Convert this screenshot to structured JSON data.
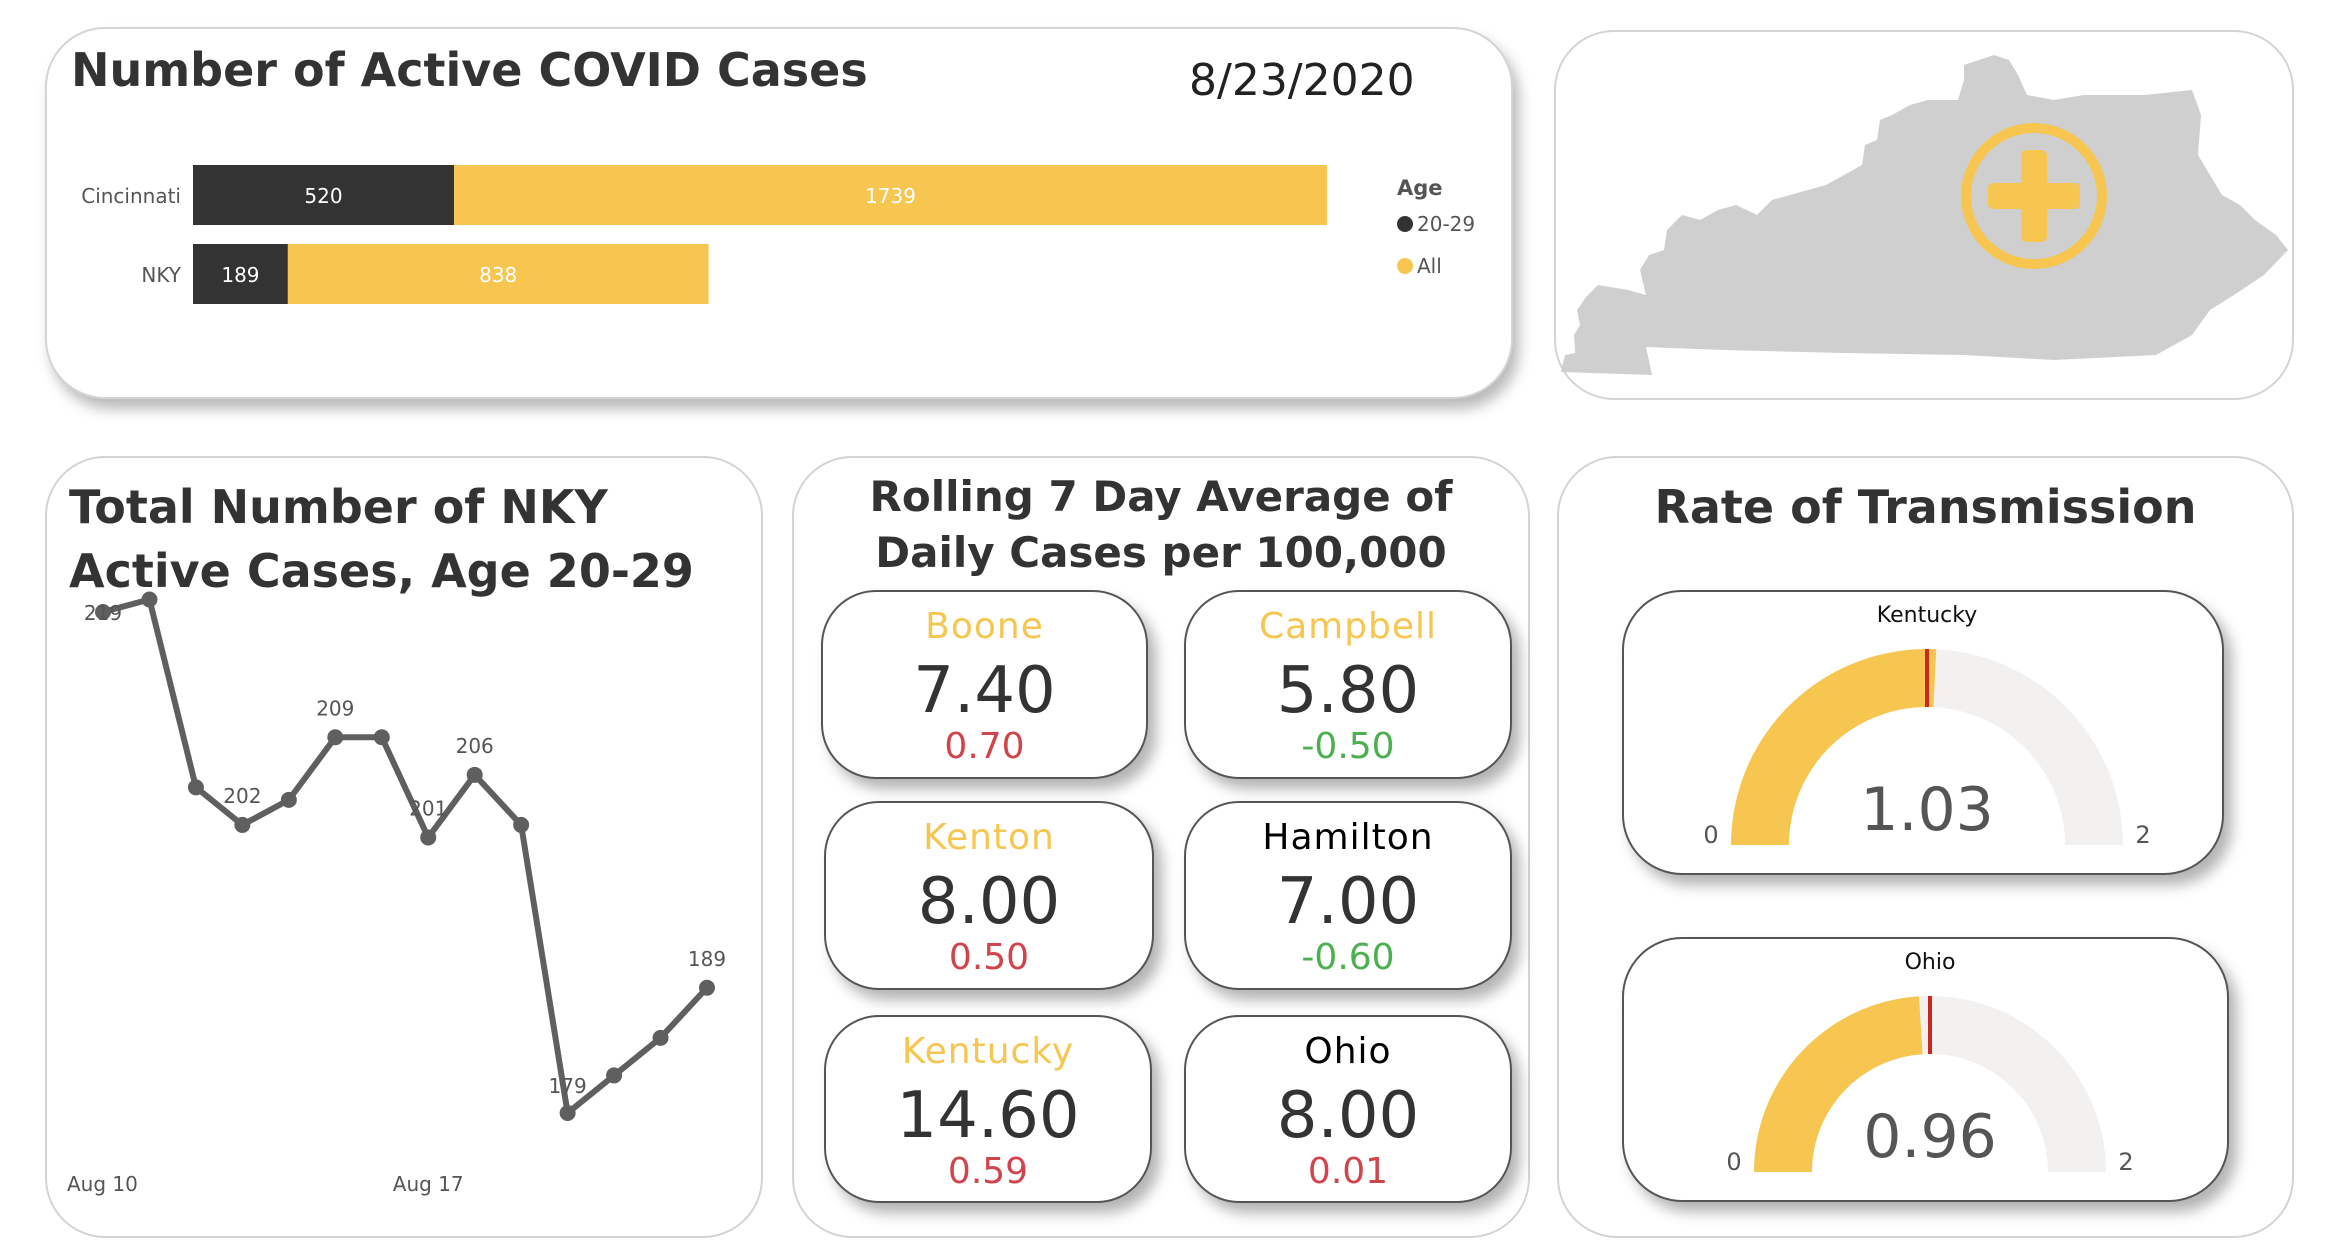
{
  "active_cases": {
    "title": "Number of Active COVID Cases",
    "date": "8/23/2020",
    "chart_data": {
      "type": "bar",
      "orientation": "horizontal",
      "stacked": true,
      "categories": [
        "Cincinnati",
        "NKY"
      ],
      "series": [
        {
          "name": "20-29",
          "values": [
            520,
            189
          ],
          "color": "#333333"
        },
        {
          "name": "All",
          "values": [
            1739,
            838
          ],
          "color": "#F6C651"
        }
      ],
      "legend_title": "Age",
      "legend_position": "right"
    }
  },
  "map": {
    "icon": "kentucky-map-with-medical-cross",
    "colors": {
      "state": "#cfcfcf",
      "cross": "#F6C651"
    }
  },
  "nky_line": {
    "title_line1": "Total Number of NKY",
    "title_line2": "Active Cases, Age 20-29",
    "chart_data": {
      "type": "line",
      "x": [
        "Aug 10",
        "Aug 11",
        "Aug 12",
        "Aug 13",
        "Aug 14",
        "Aug 15",
        "Aug 16",
        "Aug 17",
        "Aug 18",
        "Aug 19",
        "Aug 20",
        "Aug 21",
        "Aug 22",
        "Aug 23"
      ],
      "values": [
        219,
        220,
        205,
        202,
        204,
        209,
        209,
        201,
        206,
        202,
        179,
        182,
        185,
        189
      ],
      "data_labels": [
        {
          "i": 0,
          "text": "219"
        },
        {
          "i": 3,
          "text": "202"
        },
        {
          "i": 5,
          "text": "209"
        },
        {
          "i": 7,
          "text": "201"
        },
        {
          "i": 8,
          "text": "206"
        },
        {
          "i": 10,
          "text": "179"
        },
        {
          "i": 13,
          "text": "189"
        }
      ],
      "x_ticks": [
        "Aug 10",
        "Aug 17"
      ],
      "color": "#5f5f5f",
      "grid": false
    }
  },
  "rolling": {
    "title_line1": "Rolling 7 Day Average of",
    "title_line2": "Daily Cases per 100,000",
    "cards": [
      {
        "name": "Boone",
        "value": "7.40",
        "change": "0.70",
        "name_color": "#F6C651",
        "change_color": "#D0454C"
      },
      {
        "name": "Campbell",
        "value": "5.80",
        "change": "-0.50",
        "name_color": "#F6C651",
        "change_color": "#4CAF50"
      },
      {
        "name": "Kenton",
        "value": "8.00",
        "change": "0.50",
        "name_color": "#F6C651",
        "change_color": "#D0454C"
      },
      {
        "name": "Hamilton",
        "value": "7.00",
        "change": "-0.60",
        "name_color": "#000000",
        "change_color": "#4CAF50"
      },
      {
        "name": "Kentucky",
        "value": "14.60",
        "change": "0.59",
        "name_color": "#F6C651",
        "change_color": "#D0454C"
      },
      {
        "name": "Ohio",
        "value": "8.00",
        "change": "0.01",
        "name_color": "#000000",
        "change_color": "#D0454C"
      }
    ]
  },
  "transmission": {
    "title": "Rate of Transmission",
    "gauges": [
      {
        "name": "Kentucky",
        "value": 1.03,
        "label": "1.03",
        "min": 0,
        "max": 2,
        "min_label": "0",
        "max_label": "2",
        "target": 1.0
      },
      {
        "name": "Ohio",
        "value": 0.96,
        "label": "0.96",
        "min": 0,
        "max": 2,
        "min_label": "0",
        "max_label": "2",
        "target": 1.0
      }
    ],
    "colors": {
      "fill": "#F6C651",
      "track": "#F2F1F0",
      "target": "#C8281E"
    }
  }
}
